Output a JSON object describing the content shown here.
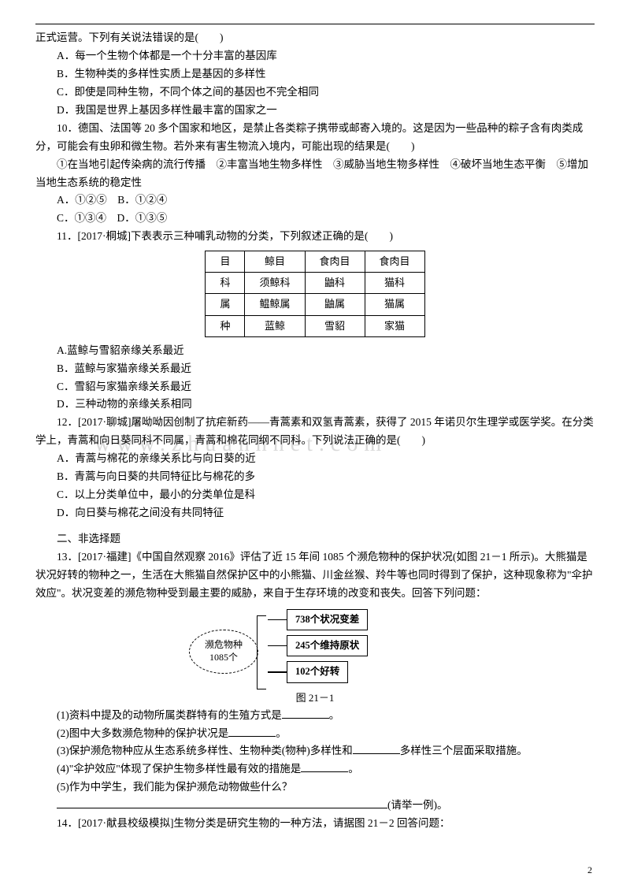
{
  "q9": {
    "lead": "正式运营。下列有关说法错误的是(　　)",
    "a": "A．每一个生物个体都是一个十分丰富的基因库",
    "b": "B．生物种类的多样性实质上是基因的多样性",
    "c": "C．即使是同种生物，不同个体之间的基因也不完全相同",
    "d": "D．我国是世界上基因多样性最丰富的国家之一"
  },
  "q10": {
    "lead": "10．德国、法国等 20 多个国家和地区，是禁止各类粽子携带或邮寄入境的。这是因为一些品种的粽子含有肉类成分，可能会有虫卵和微生物。若外来有害生物流入境内，可能出现的结果是(　　)",
    "items": "①在当地引起传染病的流行传播　②丰富当地生物多样性　③威胁当地生物多样性　④破坏当地生态平衡　⑤增加当地生态系统的稳定性",
    "ab": "A．①②⑤　B．①②④",
    "cd": "C．①③④　D．①③⑤"
  },
  "q11": {
    "lead": "11．[2017·桐城]下表表示三种哺乳动物的分类，下列叙述正确的是(　　)",
    "table": {
      "rows": [
        [
          "目",
          "鲸目",
          "食肉目",
          "食肉目"
        ],
        [
          "科",
          "须鲸科",
          "鼬科",
          "猫科"
        ],
        [
          "属",
          "鳁鲸属",
          "鼬属",
          "猫属"
        ],
        [
          "种",
          "蓝鲸",
          "雪貂",
          "家猫"
        ]
      ]
    },
    "a": "A.蓝鲸与雪貂亲缘关系最近",
    "b": "B．蓝鲸与家猫亲缘关系最近",
    "c": "C．雪貂与家猫亲缘关系最近",
    "d": "D．三种动物的亲缘关系相同"
  },
  "q12": {
    "lead": "12．[2017·聊城]屠呦呦因创制了抗疟新药——青蒿素和双氢青蒿素，获得了 2015 年诺贝尔生理学或医学奖。在分类学上，青蒿和向日葵同科不同属，青蒿和棉花同纲不同科。下列说法正确的是(　　)",
    "a": "A．青蒿与棉花的亲缘关系比与向日葵的近",
    "b": "B．青蒿与向日葵的共同特征比与棉花的多",
    "c": "C．以上分类单位中，最小的分类单位是科",
    "d": "D．向日葵与棉花之间没有共同特征"
  },
  "section2": "二、非选择题",
  "q13": {
    "lead": "13．[2017·福建]《中国自然观察 2016》评估了近 15 年间 1085 个濒危物种的保护状况(如图 21－1 所示)。大熊猫是状况好转的物种之一，生活在大熊猫自然保护区中的小熊猫、川金丝猴、羚牛等也同时得到了保护，这种现象称为\"伞护效应\"。状况变差的濒危物种受到最主要的威胁，来自于生存环境的改变和丧失。回答下列问题：",
    "diagram": {
      "center1": "濒危物种",
      "center2": "1085个",
      "box1": "738个状况变差",
      "box2": "245个维持原状",
      "box3": "102个好转"
    },
    "caption": "图 21－1",
    "p1": "(1)资料中提及的动物所属类群特有的生殖方式是",
    "p1_end": "。",
    "p2": "(2)图中大多数濒危物种的保护状况是",
    "p2_end": "。",
    "p3a": "(3)保护濒危物种应从生态系统多样性、生物种类(物种)多样性和",
    "p3b": "多样性三个层面采取措施。",
    "p4": "(4)\"伞护效应\"体现了保护生物多样性最有效的措施是",
    "p4_end": "。",
    "p5": "(5)作为中学生，我们能为保护濒危动物做些什么？",
    "p5_end": "(请举一例)。"
  },
  "q14": {
    "lead": "14．[2017·献县校级模拟]生物分类是研究生物的一种方法，请据图 21－2 回答问题："
  },
  "watermark": "www.zhuanhnet.com",
  "page": "2"
}
